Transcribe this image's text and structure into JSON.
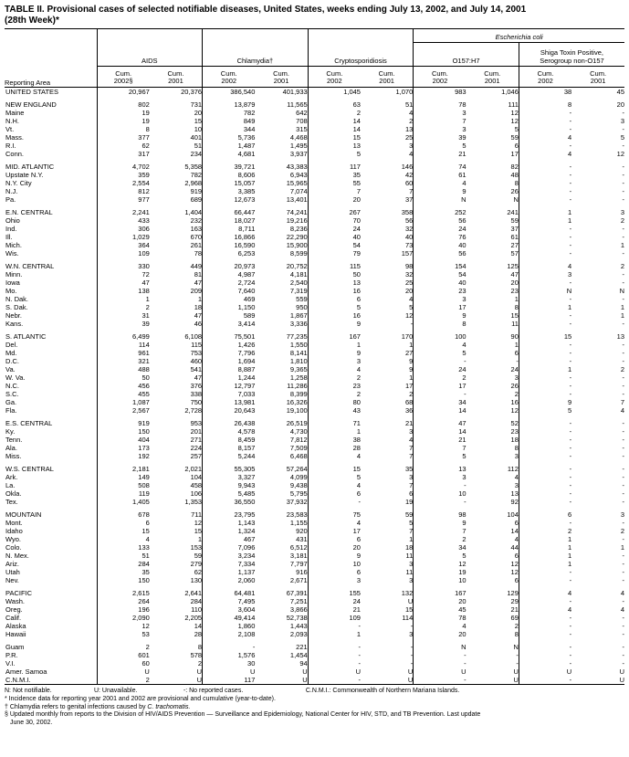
{
  "title": {
    "line1": "TABLE II. Provisional cases of selected notifiable diseases, United States, weeks ending July 13, 2002, and July 14, 2001",
    "line2": "(28th Week)*"
  },
  "table": {
    "reporting_area_label": "Reporting Area",
    "ecoli_label": "Escherichia coli",
    "groups": [
      {
        "label": "AIDS"
      },
      {
        "label": "Chlamydia†"
      },
      {
        "label": "Cryptosporidiosis"
      },
      {
        "label": "O157:H7"
      },
      {
        "label": "Shiga Toxin Positive, Serogroup non-O157"
      }
    ],
    "cums": [
      {
        "l1": "Cum.",
        "l2": "2002§"
      },
      {
        "l1": "Cum.",
        "l2": "2001"
      },
      {
        "l1": "Cum.",
        "l2": "2002"
      },
      {
        "l1": "Cum.",
        "l2": "2001"
      },
      {
        "l1": "Cum.",
        "l2": "2002"
      },
      {
        "l1": "Cum.",
        "l2": "2001"
      },
      {
        "l1": "Cum.",
        "l2": "2002"
      },
      {
        "l1": "Cum.",
        "l2": "2001"
      },
      {
        "l1": "Cum.",
        "l2": "2002"
      },
      {
        "l1": "Cum.",
        "l2": "2001"
      }
    ],
    "row_groups": [
      {
        "rows": [
          [
            "UNITED STATES",
            "20,967",
            "20,376",
            "386,540",
            "401,933",
            "1,045",
            "1,070",
            "983",
            "1,046",
            "38",
            "45"
          ]
        ]
      },
      {
        "rows": [
          [
            "NEW ENGLAND",
            "802",
            "731",
            "13,879",
            "11,565",
            "63",
            "51",
            "78",
            "111",
            "8",
            "20"
          ],
          [
            "Maine",
            "19",
            "20",
            "782",
            "642",
            "2",
            "4",
            "3",
            "12",
            "-",
            "-"
          ],
          [
            "N.H.",
            "19",
            "15",
            "849",
            "708",
            "14",
            "2",
            "7",
            "12",
            "-",
            "3"
          ],
          [
            "Vt.",
            "8",
            "10",
            "344",
            "315",
            "14",
            "13",
            "3",
            "5",
            "-",
            "-"
          ],
          [
            "Mass.",
            "377",
            "401",
            "5,736",
            "4,468",
            "15",
            "25",
            "39",
            "59",
            "4",
            "5"
          ],
          [
            "R.I.",
            "62",
            "51",
            "1,487",
            "1,495",
            "13",
            "3",
            "5",
            "6",
            "-",
            "-"
          ],
          [
            "Conn.",
            "317",
            "234",
            "4,681",
            "3,937",
            "5",
            "4",
            "21",
            "17",
            "4",
            "12"
          ]
        ]
      },
      {
        "rows": [
          [
            "MID. ATLANTIC",
            "4,702",
            "5,358",
            "39,721",
            "43,383",
            "117",
            "146",
            "74",
            "82",
            "-",
            "-"
          ],
          [
            "Upstate N.Y.",
            "359",
            "782",
            "8,606",
            "6,943",
            "35",
            "42",
            "61",
            "48",
            "-",
            "-"
          ],
          [
            "N.Y. City",
            "2,554",
            "2,968",
            "15,057",
            "15,965",
            "55",
            "60",
            "4",
            "8",
            "-",
            "-"
          ],
          [
            "N.J.",
            "812",
            "919",
            "3,385",
            "7,074",
            "7",
            "7",
            "9",
            "26",
            "-",
            "-"
          ],
          [
            "Pa.",
            "977",
            "689",
            "12,673",
            "13,401",
            "20",
            "37",
            "N",
            "N",
            "-",
            "-"
          ]
        ]
      },
      {
        "rows": [
          [
            "E.N. CENTRAL",
            "2,241",
            "1,404",
            "66,447",
            "74,241",
            "267",
            "358",
            "252",
            "241",
            "1",
            "3"
          ],
          [
            "Ohio",
            "433",
            "232",
            "18,027",
            "19,216",
            "70",
            "56",
            "56",
            "59",
            "1",
            "2"
          ],
          [
            "Ind.",
            "306",
            "163",
            "8,711",
            "8,236",
            "24",
            "32",
            "24",
            "37",
            "-",
            "-"
          ],
          [
            "Ill.",
            "1,029",
            "670",
            "16,866",
            "22,290",
            "40",
            "40",
            "76",
            "61",
            "-",
            "-"
          ],
          [
            "Mich.",
            "364",
            "261",
            "16,590",
            "15,900",
            "54",
            "73",
            "40",
            "27",
            "-",
            "1"
          ],
          [
            "Wis.",
            "109",
            "78",
            "6,253",
            "8,599",
            "79",
            "157",
            "56",
            "57",
            "-",
            "-"
          ]
        ]
      },
      {
        "rows": [
          [
            "W.N. CENTRAL",
            "330",
            "449",
            "20,973",
            "20,752",
            "115",
            "98",
            "154",
            "125",
            "4",
            "2"
          ],
          [
            "Minn.",
            "72",
            "81",
            "4,987",
            "4,181",
            "50",
            "32",
            "54",
            "47",
            "3",
            "-"
          ],
          [
            "Iowa",
            "47",
            "47",
            "2,724",
            "2,540",
            "13",
            "25",
            "40",
            "20",
            "-",
            "-"
          ],
          [
            "Mo.",
            "138",
            "209",
            "7,640",
            "7,319",
            "16",
            "20",
            "23",
            "23",
            "N",
            "N"
          ],
          [
            "N. Dak.",
            "1",
            "1",
            "469",
            "559",
            "6",
            "4",
            "3",
            "1",
            "-",
            "-"
          ],
          [
            "S. Dak.",
            "2",
            "18",
            "1,150",
            "950",
            "5",
            "5",
            "17",
            "8",
            "1",
            "1"
          ],
          [
            "Nebr.",
            "31",
            "47",
            "589",
            "1,867",
            "16",
            "12",
            "9",
            "15",
            "-",
            "1"
          ],
          [
            "Kans.",
            "39",
            "46",
            "3,414",
            "3,336",
            "9",
            "-",
            "8",
            "11",
            "-",
            "-"
          ]
        ]
      },
      {
        "rows": [
          [
            "S. ATLANTIC",
            "6,499",
            "6,108",
            "75,501",
            "77,235",
            "167",
            "170",
            "100",
            "90",
            "15",
            "13"
          ],
          [
            "Del.",
            "114",
            "115",
            "1,426",
            "1,550",
            "1",
            "1",
            "4",
            "1",
            "-",
            "-"
          ],
          [
            "Md.",
            "961",
            "753",
            "7,796",
            "8,141",
            "9",
            "27",
            "5",
            "6",
            "-",
            "-"
          ],
          [
            "D.C.",
            "321",
            "460",
            "1,694",
            "1,810",
            "3",
            "9",
            "-",
            "-",
            "-",
            "-"
          ],
          [
            "Va.",
            "488",
            "541",
            "8,887",
            "9,365",
            "4",
            "9",
            "24",
            "24",
            "1",
            "2"
          ],
          [
            "W. Va.",
            "50",
            "47",
            "1,244",
            "1,258",
            "2",
            "1",
            "2",
            "3",
            "-",
            "-"
          ],
          [
            "N.C.",
            "456",
            "376",
            "12,797",
            "11,286",
            "23",
            "17",
            "17",
            "26",
            "-",
            "-"
          ],
          [
            "S.C.",
            "455",
            "338",
            "7,033",
            "8,399",
            "2",
            "2",
            "-",
            "2",
            "-",
            "-"
          ],
          [
            "Ga.",
            "1,087",
            "750",
            "13,981",
            "16,326",
            "80",
            "68",
            "34",
            "16",
            "9",
            "7"
          ],
          [
            "Fla.",
            "2,567",
            "2,728",
            "20,643",
            "19,100",
            "43",
            "36",
            "14",
            "12",
            "5",
            "4"
          ]
        ]
      },
      {
        "rows": [
          [
            "E.S. CENTRAL",
            "919",
            "953",
            "26,438",
            "26,519",
            "71",
            "21",
            "47",
            "52",
            "-",
            "-"
          ],
          [
            "Ky.",
            "150",
            "201",
            "4,578",
            "4,730",
            "1",
            "3",
            "14",
            "23",
            "-",
            "-"
          ],
          [
            "Tenn.",
            "404",
            "271",
            "8,459",
            "7,812",
            "38",
            "4",
            "21",
            "18",
            "-",
            "-"
          ],
          [
            "Ala.",
            "173",
            "224",
            "8,157",
            "7,509",
            "28",
            "7",
            "7",
            "8",
            "-",
            "-"
          ],
          [
            "Miss.",
            "192",
            "257",
            "5,244",
            "6,468",
            "4",
            "7",
            "5",
            "3",
            "-",
            "-"
          ]
        ]
      },
      {
        "rows": [
          [
            "W.S. CENTRAL",
            "2,181",
            "2,021",
            "55,305",
            "57,264",
            "15",
            "35",
            "13",
            "112",
            "-",
            "-"
          ],
          [
            "Ark.",
            "149",
            "104",
            "3,327",
            "4,099",
            "5",
            "3",
            "3",
            "4",
            "-",
            "-"
          ],
          [
            "La.",
            "508",
            "458",
            "9,943",
            "9,438",
            "4",
            "7",
            "-",
            "3",
            "-",
            "-"
          ],
          [
            "Okla.",
            "119",
            "106",
            "5,485",
            "5,795",
            "6",
            "6",
            "10",
            "13",
            "-",
            "-"
          ],
          [
            "Tex.",
            "1,405",
            "1,353",
            "36,550",
            "37,932",
            "-",
            "19",
            "-",
            "92",
            "-",
            "-"
          ]
        ]
      },
      {
        "rows": [
          [
            "MOUNTAIN",
            "678",
            "711",
            "23,795",
            "23,583",
            "75",
            "59",
            "98",
            "104",
            "6",
            "3"
          ],
          [
            "Mont.",
            "6",
            "12",
            "1,143",
            "1,155",
            "4",
            "5",
            "9",
            "6",
            "-",
            "-"
          ],
          [
            "Idaho",
            "15",
            "15",
            "1,324",
            "920",
            "17",
            "7",
            "7",
            "14",
            "2",
            "2"
          ],
          [
            "Wyo.",
            "4",
            "1",
            "467",
            "431",
            "6",
            "1",
            "2",
            "4",
            "1",
            "-"
          ],
          [
            "Colo.",
            "133",
            "153",
            "7,096",
            "6,512",
            "20",
            "18",
            "34",
            "44",
            "1",
            "1"
          ],
          [
            "N. Mex.",
            "51",
            "59",
            "3,234",
            "3,181",
            "9",
            "11",
            "5",
            "6",
            "1",
            "-"
          ],
          [
            "Ariz.",
            "284",
            "279",
            "7,334",
            "7,797",
            "10",
            "3",
            "12",
            "12",
            "1",
            "-"
          ],
          [
            "Utah",
            "35",
            "62",
            "1,137",
            "916",
            "6",
            "11",
            "19",
            "12",
            "-",
            "-"
          ],
          [
            "Nev.",
            "150",
            "130",
            "2,060",
            "2,671",
            "3",
            "3",
            "10",
            "6",
            "-",
            "-"
          ]
        ]
      },
      {
        "rows": [
          [
            "PACIFIC",
            "2,615",
            "2,641",
            "64,481",
            "67,391",
            "155",
            "132",
            "167",
            "129",
            "4",
            "4"
          ],
          [
            "Wash.",
            "264",
            "284",
            "7,495",
            "7,251",
            "24",
            "U",
            "20",
            "29",
            "-",
            "-"
          ],
          [
            "Oreg.",
            "196",
            "110",
            "3,604",
            "3,866",
            "21",
            "15",
            "45",
            "21",
            "4",
            "4"
          ],
          [
            "Calif.",
            "2,090",
            "2,205",
            "49,414",
            "52,738",
            "109",
            "114",
            "78",
            "69",
            "-",
            "-"
          ],
          [
            "Alaska",
            "12",
            "14",
            "1,860",
            "1,443",
            "-",
            "-",
            "4",
            "2",
            "-",
            "-"
          ],
          [
            "Hawaii",
            "53",
            "28",
            "2,108",
            "2,093",
            "1",
            "3",
            "20",
            "8",
            "-",
            "-"
          ]
        ]
      },
      {
        "rows": [
          [
            "Guam",
            "2",
            "8",
            "-",
            "221",
            "-",
            "-",
            "N",
            "N",
            "-",
            "-"
          ],
          [
            "P.R.",
            "601",
            "578",
            "1,576",
            "1,454",
            "-",
            "-",
            "-",
            "-",
            "-",
            "-"
          ],
          [
            "V.I.",
            "60",
            "2",
            "30",
            "94",
            "-",
            "-",
            "-",
            "-",
            "-",
            "-"
          ],
          [
            "Amer. Samoa",
            "U",
            "U",
            "U",
            "U",
            "U",
            "U",
            "U",
            "U",
            "U",
            "U"
          ],
          [
            "C.N.M.I.",
            "2",
            "U",
            "117",
            "U",
            "-",
            "U",
            "-",
            "U",
            "-",
            "U"
          ]
        ]
      }
    ]
  },
  "footnotes": {
    "legend": [
      "N: Not notifiable.",
      "U: Unavailable.",
      "-: No reported cases.",
      "C.N.M.I.: Commonwealth of Northern Mariana Islands."
    ],
    "star": "* Incidence data for reporting year 2001 and 2002 are provisional and cumulative (year-to-date).",
    "dagger_prefix": "† Chlamydia refers to genital infections caused by ",
    "dagger_italic": "C. trachomatis.",
    "section_line1": "§ Updated monthly from reports to the Division of HIV/AIDS Prevention — Surveillance and Epidemiology, National Center for HIV, STD, and TB Prevention. Last update",
    "section_line2": "June 30, 2002."
  }
}
